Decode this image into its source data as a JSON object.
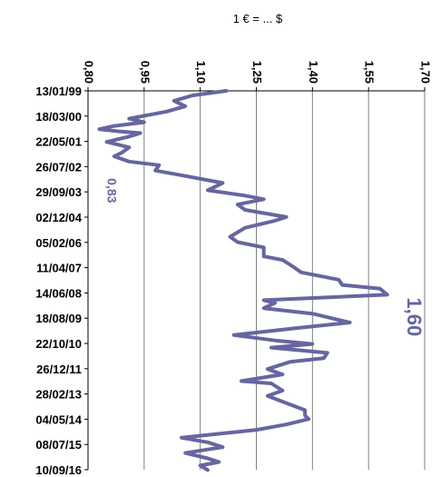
{
  "chart_data": {
    "type": "line",
    "orientation": "time-vertical-downward",
    "title": "1 € = ... $",
    "series_color": "#6666a0",
    "value_ticks": [
      "0,80",
      "0,95",
      "1,10",
      "1,25",
      "1,40",
      "1,55",
      "1,70"
    ],
    "value_range": [
      0.8,
      1.7
    ],
    "value_tick_step": 0.15,
    "date_ticks": [
      "13/01/99",
      "18/03/00",
      "22/05/01",
      "26/07/02",
      "29/09/03",
      "02/12/04",
      "05/02/06",
      "11/04/07",
      "14/06/08",
      "18/08/09",
      "22/10/10",
      "26/12/11",
      "28/02/13",
      "04/05/14",
      "08/07/15",
      "10/09/16"
    ],
    "grid": "vertical",
    "annotations": [
      {
        "label": "0,83",
        "value": 0.83,
        "date": "26/10/2000"
      },
      {
        "label": "1,60",
        "value": 1.6,
        "date": "15/07/2008"
      }
    ],
    "series": [
      {
        "points": [
          [
            "1999-01-13",
            1.17
          ],
          [
            "1999-04-01",
            1.08
          ],
          [
            "1999-07-01",
            1.03
          ],
          [
            "1999-10-01",
            1.06
          ],
          [
            "2000-01-01",
            1.01
          ],
          [
            "2000-03-01",
            0.96
          ],
          [
            "2000-05-01",
            0.91
          ],
          [
            "2000-07-01",
            0.95
          ],
          [
            "2000-09-01",
            0.87
          ],
          [
            "2000-10-26",
            0.83
          ],
          [
            "2000-12-01",
            0.88
          ],
          [
            "2001-01-01",
            0.94
          ],
          [
            "2001-03-01",
            0.91
          ],
          [
            "2001-06-01",
            0.85
          ],
          [
            "2001-09-01",
            0.91
          ],
          [
            "2001-12-01",
            0.89
          ],
          [
            "2002-02-01",
            0.87
          ],
          [
            "2002-05-01",
            0.91
          ],
          [
            "2002-07-01",
            0.99
          ],
          [
            "2002-10-01",
            0.98
          ],
          [
            "2003-01-01",
            1.06
          ],
          [
            "2003-05-01",
            1.16
          ],
          [
            "2003-07-01",
            1.14
          ],
          [
            "2003-09-01",
            1.12
          ],
          [
            "2003-12-01",
            1.22
          ],
          [
            "2004-02-01",
            1.27
          ],
          [
            "2004-05-01",
            1.2
          ],
          [
            "2004-08-01",
            1.22
          ],
          [
            "2004-12-01",
            1.33
          ],
          [
            "2005-02-01",
            1.3
          ],
          [
            "2005-06-01",
            1.22
          ],
          [
            "2005-11-01",
            1.18
          ],
          [
            "2006-02-01",
            1.2
          ],
          [
            "2006-05-01",
            1.27
          ],
          [
            "2006-10-01",
            1.27
          ],
          [
            "2006-12-01",
            1.32
          ],
          [
            "2007-04-01",
            1.35
          ],
          [
            "2007-07-01",
            1.37
          ],
          [
            "2007-11-01",
            1.47
          ],
          [
            "2008-02-01",
            1.48
          ],
          [
            "2008-04-01",
            1.58
          ],
          [
            "2008-07-15",
            1.6
          ],
          [
            "2008-09-01",
            1.43
          ],
          [
            "2008-10-15",
            1.27
          ],
          [
            "2008-12-01",
            1.3
          ],
          [
            "2009-03-01",
            1.27
          ],
          [
            "2009-06-01",
            1.4
          ],
          [
            "2009-11-01",
            1.5
          ],
          [
            "2010-02-01",
            1.36
          ],
          [
            "2010-06-01",
            1.19
          ],
          [
            "2010-09-01",
            1.3
          ],
          [
            "2010-11-01",
            1.4
          ],
          [
            "2011-01-01",
            1.29
          ],
          [
            "2011-04-01",
            1.44
          ],
          [
            "2011-07-01",
            1.43
          ],
          [
            "2011-09-01",
            1.34
          ],
          [
            "2012-01-01",
            1.28
          ],
          [
            "2012-04-01",
            1.32
          ],
          [
            "2012-07-24",
            1.21
          ],
          [
            "2012-09-01",
            1.29
          ],
          [
            "2013-01-01",
            1.32
          ],
          [
            "2013-04-01",
            1.28
          ],
          [
            "2013-08-01",
            1.33
          ],
          [
            "2013-12-01",
            1.38
          ],
          [
            "2014-03-01",
            1.38
          ],
          [
            "2014-05-01",
            1.39
          ],
          [
            "2014-08-01",
            1.33
          ],
          [
            "2014-11-01",
            1.25
          ],
          [
            "2015-01-01",
            1.16
          ],
          [
            "2015-03-15",
            1.05
          ],
          [
            "2015-06-01",
            1.12
          ],
          [
            "2015-08-24",
            1.16
          ],
          [
            "2015-10-01",
            1.12
          ],
          [
            "2015-12-01",
            1.06
          ],
          [
            "2016-03-01",
            1.12
          ],
          [
            "2016-05-01",
            1.15
          ],
          [
            "2016-07-01",
            1.1
          ],
          [
            "2016-09-15",
            1.12
          ]
        ]
      }
    ]
  }
}
